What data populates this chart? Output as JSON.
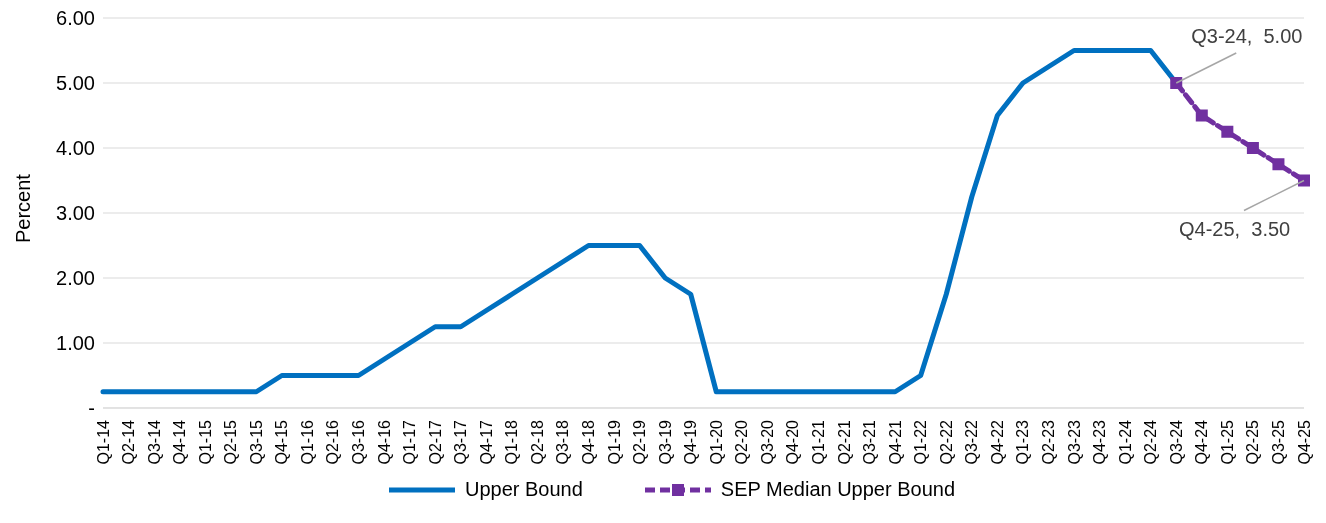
{
  "chart_data": {
    "type": "line",
    "ylabel": "Percent",
    "categories": [
      "Q1-14",
      "Q2-14",
      "Q3-14",
      "Q4-14",
      "Q1-15",
      "Q2-15",
      "Q3-15",
      "Q4-15",
      "Q1-16",
      "Q2-16",
      "Q3-16",
      "Q4-16",
      "Q1-17",
      "Q2-17",
      "Q3-17",
      "Q4-17",
      "Q1-18",
      "Q2-18",
      "Q3-18",
      "Q4-18",
      "Q1-19",
      "Q2-19",
      "Q3-19",
      "Q4-19",
      "Q1-20",
      "Q2-20",
      "Q3-20",
      "Q4-20",
      "Q1-21",
      "Q2-21",
      "Q3-21",
      "Q4-21",
      "Q1-22",
      "Q2-22",
      "Q3-22",
      "Q4-22",
      "Q1-23",
      "Q2-23",
      "Q3-23",
      "Q4-23",
      "Q1-24",
      "Q2-24",
      "Q3-24",
      "Q4-24",
      "Q1-25",
      "Q2-25",
      "Q3-25",
      "Q4-25"
    ],
    "series": [
      {
        "name": "Upper Bound",
        "color": "#0070c0",
        "marker": "none",
        "line_style": "solid",
        "values": [
          0.25,
          0.25,
          0.25,
          0.25,
          0.25,
          0.25,
          0.25,
          0.5,
          0.5,
          0.5,
          0.5,
          0.75,
          1.0,
          1.25,
          1.25,
          1.5,
          1.75,
          2.0,
          2.25,
          2.5,
          2.5,
          2.5,
          2.0,
          1.75,
          0.25,
          0.25,
          0.25,
          0.25,
          0.25,
          0.25,
          0.25,
          0.25,
          0.5,
          1.75,
          3.25,
          4.5,
          5.0,
          5.25,
          5.5,
          5.5,
          5.5,
          5.5,
          5.0,
          null,
          null,
          null,
          null,
          null
        ]
      },
      {
        "name": "SEP Median Upper Bound",
        "color": "#7030a0",
        "marker": "square",
        "line_style": "dashed",
        "values": [
          null,
          null,
          null,
          null,
          null,
          null,
          null,
          null,
          null,
          null,
          null,
          null,
          null,
          null,
          null,
          null,
          null,
          null,
          null,
          null,
          null,
          null,
          null,
          null,
          null,
          null,
          null,
          null,
          null,
          null,
          null,
          null,
          null,
          null,
          null,
          null,
          null,
          null,
          null,
          null,
          null,
          null,
          5.0,
          4.5,
          4.25,
          4.0,
          3.75,
          3.5
        ]
      }
    ],
    "ylim": [
      0,
      6
    ],
    "yticks": [
      {
        "value": 0,
        "label": "-"
      },
      {
        "value": 1,
        "label": "1.00"
      },
      {
        "value": 2,
        "label": "2.00"
      },
      {
        "value": 3,
        "label": "3.00"
      },
      {
        "value": 4,
        "label": "4.00"
      },
      {
        "value": 5,
        "label": "5.00"
      },
      {
        "value": 6,
        "label": "6.00"
      }
    ],
    "grid": "y",
    "legend": "bottom",
    "annotations": [
      {
        "text": "Q3-24,  5.00",
        "x": "Q3-24",
        "y": 5.0
      },
      {
        "text": "Q4-25,  3.50",
        "x": "Q4-25",
        "y": 3.5
      }
    ]
  }
}
